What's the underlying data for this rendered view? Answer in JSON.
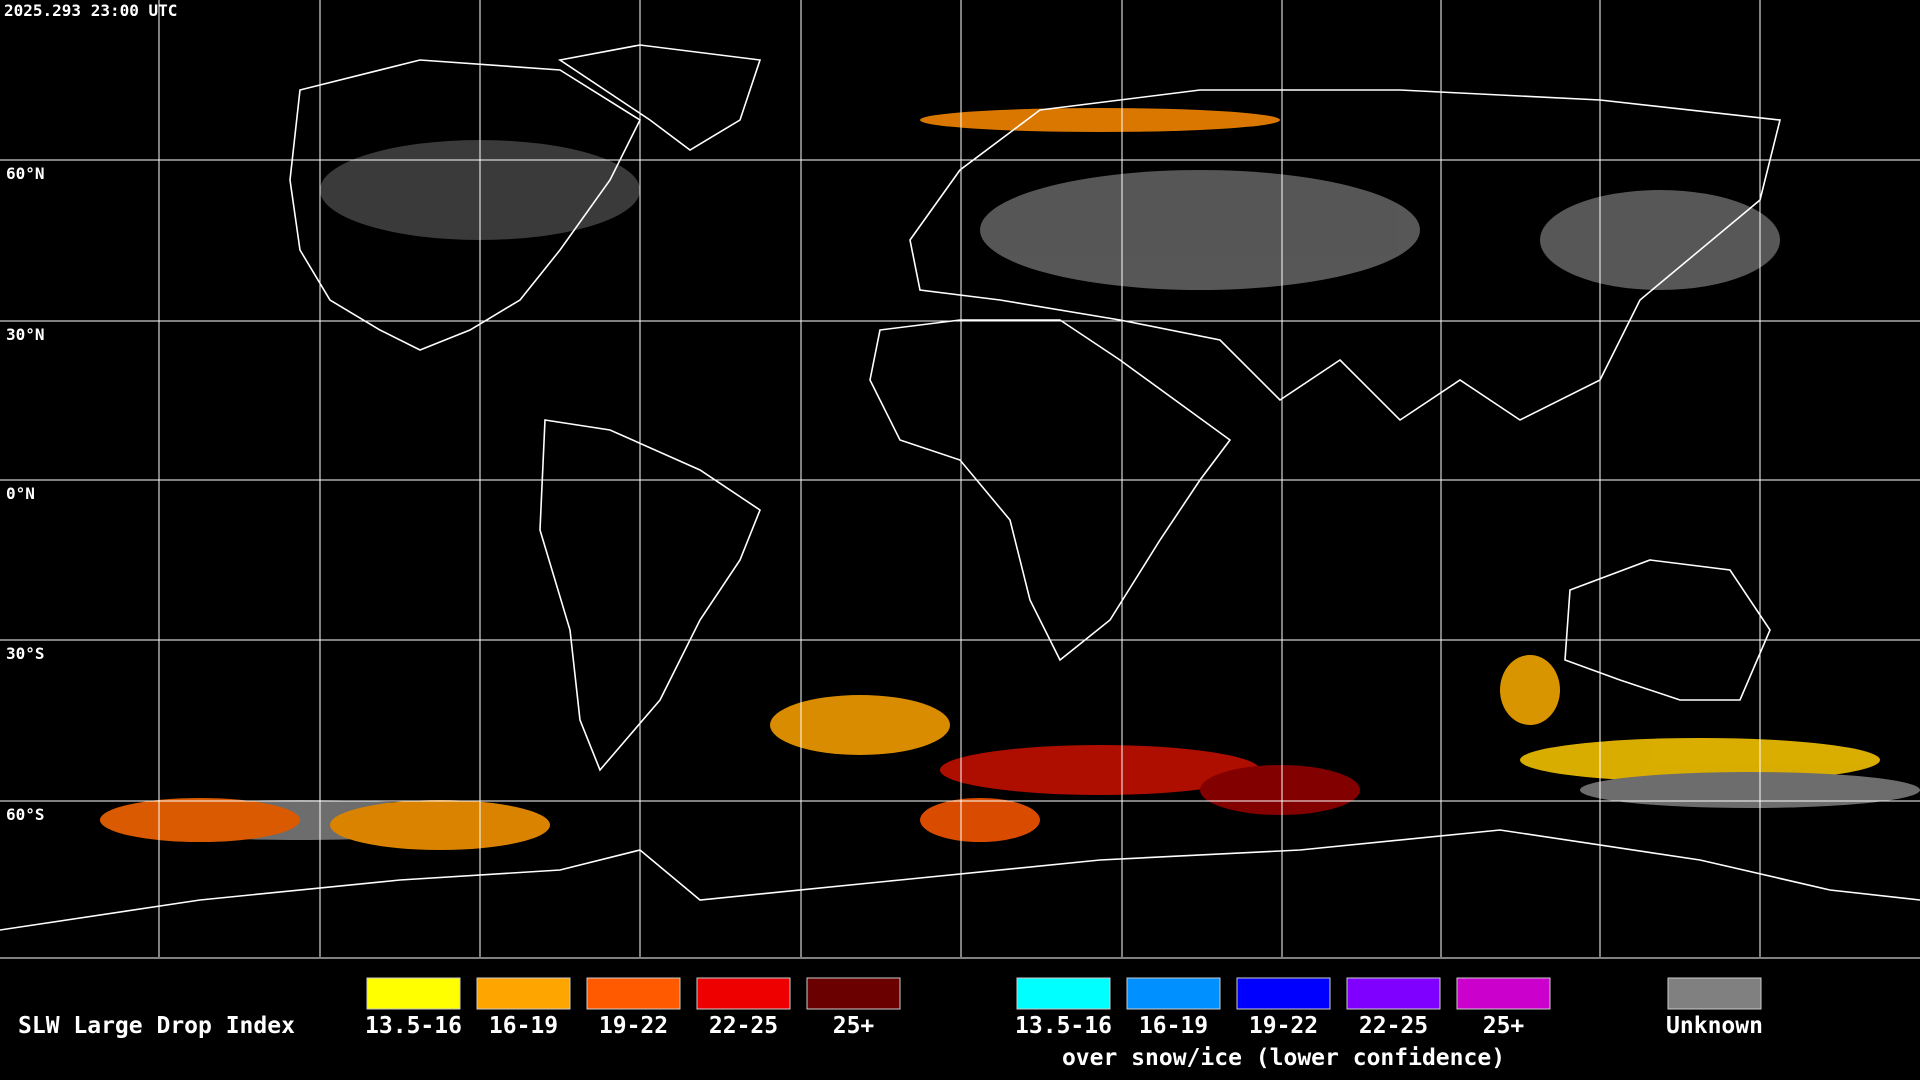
{
  "timestamp": "2025.293 23:00 UTC",
  "latitude_labels": [
    "60°N",
    "30°N",
    "0°N",
    "30°S",
    "60°S"
  ],
  "legend": {
    "title": "SLW Large Drop Index",
    "groups": [
      {
        "items": [
          {
            "label": "13.5-16",
            "color": "#ffff00"
          },
          {
            "label": "16-19",
            "color": "#ffa500"
          },
          {
            "label": "19-22",
            "color": "#ff5a00"
          },
          {
            "label": "22-25",
            "color": "#ee0000"
          },
          {
            "label": "25+",
            "color": "#6a0000"
          }
        ]
      },
      {
        "items": [
          {
            "label": "13.5-16",
            "color": "#00ffff"
          },
          {
            "label": "16-19",
            "color": "#0090ff"
          },
          {
            "label": "19-22",
            "color": "#0000ff"
          },
          {
            "label": "22-25",
            "color": "#8000ff"
          },
          {
            "label": "25+",
            "color": "#cc00cc"
          }
        ],
        "caption": "over snow/ice (lower confidence)"
      },
      {
        "items": [
          {
            "label": "Unknown",
            "color": "#808080"
          }
        ]
      }
    ]
  }
}
